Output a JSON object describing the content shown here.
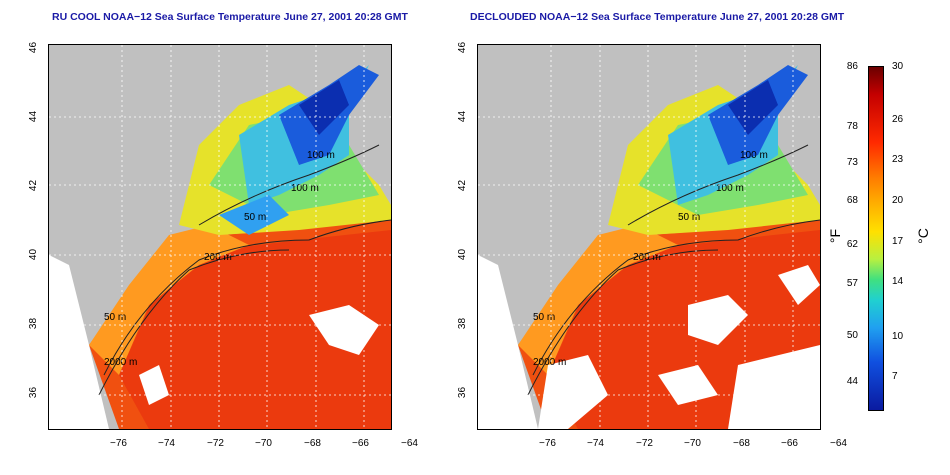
{
  "panels": [
    {
      "title": "RU COOL NOAA−12 Sea Surface Temperature June 27, 2001 20:28 GMT"
    },
    {
      "title": "DECLOUDED NOAA−12 Sea Surface Temperature June 27, 2001 20:28 GMT"
    }
  ],
  "axes": {
    "x_ticks": [
      "−76",
      "−74",
      "−72",
      "−70",
      "−68",
      "−66",
      "−64"
    ],
    "y_ticks": [
      "36",
      "38",
      "40",
      "42",
      "44",
      "46"
    ]
  },
  "contour_labels": [
    "100 m",
    "100 m",
    "50 m",
    "200 m",
    "50 m",
    "2000 m"
  ],
  "colorbar": {
    "f_ticks": [
      "86",
      "78",
      "73",
      "68",
      "62",
      "57",
      "50",
      "44"
    ],
    "c_ticks": [
      "30",
      "26",
      "23",
      "20",
      "17",
      "14",
      "10",
      "7"
    ],
    "f_unit": "°F",
    "c_unit": "°C"
  }
}
